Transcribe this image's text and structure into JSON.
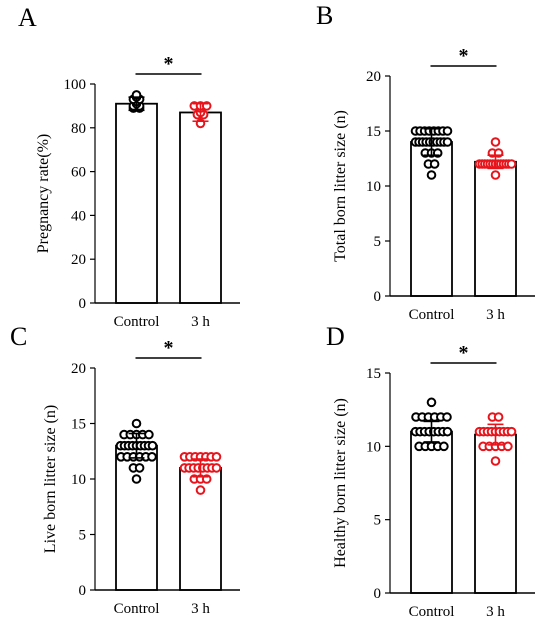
{
  "chart_data": [
    {
      "panel_label": "A",
      "type": "bar",
      "categories": [
        "Control",
        "3 h"
      ],
      "ylabel": "Pregnancy rate(%)",
      "ylim": [
        0,
        100
      ],
      "yticks": [
        0,
        20,
        40,
        60,
        80,
        100
      ],
      "significance": "*",
      "bars": [
        {
          "category": "Control",
          "mean": 91,
          "sd": 3,
          "color": "#000000",
          "points": [
            89,
            89,
            90,
            90,
            91,
            92,
            93,
            93,
            94,
            95
          ]
        },
        {
          "category": "3 h",
          "mean": 87,
          "sd": 4,
          "color": "#e8141c",
          "points": [
            82,
            86,
            86,
            87,
            89,
            90,
            90,
            90
          ]
        }
      ]
    },
    {
      "panel_label": "B",
      "type": "bar",
      "categories": [
        "Control",
        "3 h"
      ],
      "ylabel": "Total born litter size (n)",
      "ylim": [
        0,
        20
      ],
      "yticks": [
        0,
        5,
        10,
        15,
        20
      ],
      "significance": "*",
      "bars": [
        {
          "category": "Control",
          "mean": 14,
          "sd": 1.2,
          "color": "#000000",
          "points": [
            15,
            15,
            15,
            15,
            15,
            15,
            15,
            15,
            14,
            14,
            14,
            14,
            14,
            14,
            14,
            14,
            14,
            14,
            13,
            13,
            13,
            12,
            12,
            11
          ]
        },
        {
          "category": "3 h",
          "mean": 12.2,
          "sd": 0.6,
          "color": "#e8141c",
          "points": [
            14,
            13,
            13,
            12,
            12,
            12,
            12,
            12,
            12,
            12,
            12,
            12,
            12,
            12,
            12,
            12,
            11
          ]
        }
      ]
    },
    {
      "panel_label": "C",
      "type": "bar",
      "categories": [
        "Control",
        "3 h"
      ],
      "ylabel": "Live born litter size (n)",
      "ylim": [
        0,
        20
      ],
      "yticks": [
        0,
        5,
        10,
        15,
        20
      ],
      "significance": "*",
      "bars": [
        {
          "category": "Control",
          "mean": 13,
          "sd": 1.1,
          "color": "#000000",
          "points": [
            15,
            14,
            14,
            14,
            14,
            14,
            13,
            13,
            13,
            13,
            13,
            13,
            13,
            13,
            13,
            12,
            12,
            12,
            12,
            12,
            12,
            11,
            11,
            10
          ]
        },
        {
          "category": "3 h",
          "mean": 11,
          "sd": 0.8,
          "color": "#e8141c",
          "points": [
            12,
            12,
            12,
            12,
            12,
            12,
            12,
            11,
            11,
            11,
            11,
            11,
            11,
            11,
            11,
            10,
            10,
            10,
            9
          ]
        }
      ]
    },
    {
      "panel_label": "D",
      "type": "bar",
      "categories": [
        "Control",
        "3 h"
      ],
      "ylabel": "Healthy born litter size (n)",
      "ylim": [
        0,
        15
      ],
      "yticks": [
        0,
        5,
        10,
        15
      ],
      "significance": "*",
      "bars": [
        {
          "category": "Control",
          "mean": 11,
          "sd": 0.7,
          "color": "#000000",
          "points": [
            13,
            12,
            12,
            12,
            12,
            12,
            12,
            11,
            11,
            11,
            11,
            11,
            11,
            11,
            11,
            10,
            10,
            10,
            10,
            10
          ]
        },
        {
          "category": "3 h",
          "mean": 10.8,
          "sd": 0.7,
          "color": "#e8141c",
          "points": [
            12,
            12,
            11,
            11,
            11,
            11,
            11,
            11,
            11,
            11,
            11,
            10,
            10,
            10,
            10,
            10,
            9
          ]
        }
      ]
    }
  ]
}
